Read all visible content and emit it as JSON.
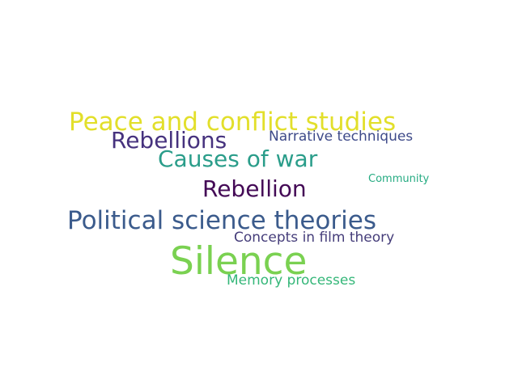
{
  "words": {
    "peace": {
      "text": "Peace and conflict studies",
      "color": "#e2df2a"
    },
    "rebs": {
      "text": "Rebellions",
      "color": "#46327e"
    },
    "narr": {
      "text": "Narrative techniques",
      "color": "#3e4a89"
    },
    "causes": {
      "text": "Causes of war",
      "color": "#2a9d8a"
    },
    "comm": {
      "text": "Community",
      "color": "#25ab82"
    },
    "rebel": {
      "text": "Rebellion",
      "color": "#440a56"
    },
    "polit": {
      "text": "Political science theories",
      "color": "#3b5b8c"
    },
    "film": {
      "text": "Concepts in film theory",
      "color": "#453d7a"
    },
    "silence": {
      "text": "Silence",
      "color": "#7ad151"
    },
    "memory": {
      "text": "Memory processes",
      "color": "#35b779"
    }
  }
}
